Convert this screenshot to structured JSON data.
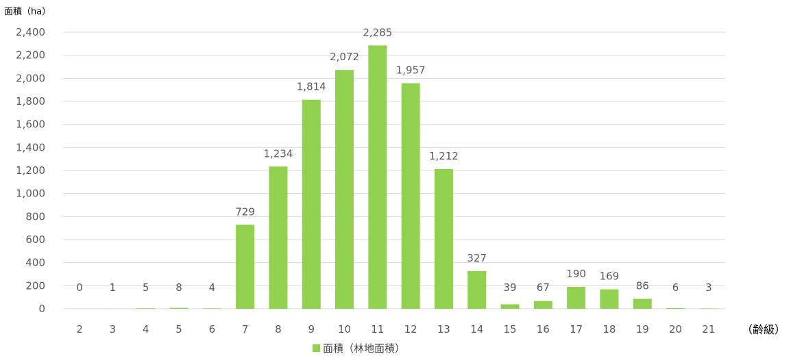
{
  "chart_data": {
    "type": "bar",
    "ylabel": "面積（ha）",
    "xlabel": "（齢級）",
    "categories": [
      "2",
      "3",
      "4",
      "5",
      "6",
      "7",
      "8",
      "9",
      "10",
      "11",
      "12",
      "13",
      "14",
      "15",
      "16",
      "17",
      "18",
      "19",
      "20",
      "21"
    ],
    "series": [
      {
        "name": "面積（林地面積）",
        "values": [
          0,
          1,
          5,
          8,
          4,
          729,
          1234,
          1814,
          2072,
          2285,
          1957,
          1212,
          327,
          39,
          67,
          190,
          169,
          86,
          6,
          3
        ],
        "data_labels": [
          "0",
          "1",
          "5",
          "8",
          "4",
          "729",
          "1,234",
          "1,814",
          "2,072",
          "2,285",
          "1,957",
          "1,212",
          "327",
          "39",
          "67",
          "190",
          "169",
          "86",
          "6",
          "3"
        ]
      }
    ],
    "ylim": [
      0,
      2400
    ],
    "yticks": [
      "0",
      "200",
      "400",
      "600",
      "800",
      "1,000",
      "1,200",
      "1,400",
      "1,600",
      "1,800",
      "2,000",
      "2,200",
      "2,400"
    ],
    "grid": true,
    "legend_position": "bottom",
    "colors": {
      "bar": "#92D050",
      "grid": "#D9D9D9",
      "text": "#595959"
    }
  }
}
